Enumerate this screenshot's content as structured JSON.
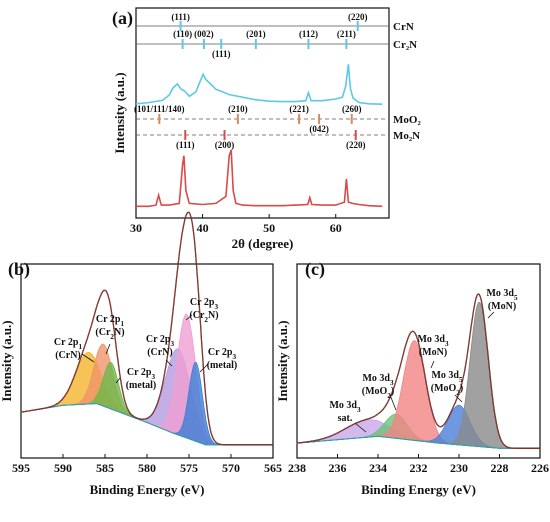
{
  "chart_data": [
    {
      "panel": "(a)",
      "type": "line",
      "xlabel": "2θ (degree)",
      "ylabel": "Intensity (a.u.)",
      "xlim": [
        30,
        68
      ],
      "xticks": [
        "30",
        "40",
        "50",
        "60"
      ],
      "reference_rows": [
        {
          "name": "CrN",
          "peaks": [
            {
              "x": 36.7,
              "label": "(111)"
            },
            {
              "x": 63.3,
              "label": "(220)"
            }
          ]
        },
        {
          "name": "Cr₂N",
          "peaks": [
            {
              "x": 37.0,
              "label": "(110)"
            },
            {
              "x": 40.2,
              "label": "(002)"
            },
            {
              "x": 42.8,
              "label": "(111)"
            },
            {
              "x": 48.0,
              "label": "(201)"
            },
            {
              "x": 55.9,
              "label": "(112)"
            },
            {
              "x": 61.6,
              "label": "(211)"
            }
          ]
        },
        {
          "name": "MoO₂",
          "peaks": [
            {
              "x": 33.5,
              "label": "(101/111/140)"
            },
            {
              "x": 45.3,
              "label": "(210)"
            },
            {
              "x": 54.5,
              "label": "(221)"
            },
            {
              "x": 57.5,
              "label": "(042)"
            },
            {
              "x": 62.4,
              "label": "(260)"
            }
          ]
        },
        {
          "name": "Mo₂N",
          "peaks": [
            {
              "x": 37.4,
              "label": "(111)"
            },
            {
              "x": 43.3,
              "label": "(200)"
            },
            {
              "x": 63.0,
              "label": "(220)"
            }
          ]
        }
      ],
      "series": [
        {
          "color": "#5cc9e6",
          "x": [
            30,
            32,
            34,
            35,
            35.5,
            36.2,
            36.8,
            37.3,
            38,
            39,
            39.6,
            40.1,
            40.5,
            41.2,
            42,
            43,
            44,
            46,
            48,
            50,
            52,
            54,
            55.5,
            55.9,
            56.3,
            58,
            60,
            61,
            61.5,
            61.9,
            62.2,
            62.6,
            63.5,
            65,
            67
          ],
          "y": [
            0.05,
            0.08,
            0.13,
            0.25,
            0.4,
            0.5,
            0.38,
            0.34,
            0.22,
            0.32,
            0.55,
            0.72,
            0.6,
            0.5,
            0.38,
            0.32,
            0.26,
            0.2,
            0.14,
            0.11,
            0.1,
            0.1,
            0.12,
            0.3,
            0.12,
            0.12,
            0.16,
            0.2,
            0.45,
            0.95,
            0.4,
            0.18,
            0.08,
            0.05,
            0.04
          ]
        },
        {
          "color": "#d94a4a",
          "x": [
            30,
            32,
            33,
            33.4,
            33.8,
            35,
            36.5,
            37.0,
            37.2,
            37.5,
            38,
            40,
            42,
            43.5,
            44.0,
            44.3,
            44.6,
            45,
            46,
            48,
            50,
            52,
            54,
            55.8,
            56.1,
            56.4,
            58,
            60,
            61.3,
            61.6,
            61.9,
            62.5,
            63.5,
            65,
            67
          ],
          "y": [
            0.03,
            0.03,
            0.05,
            0.22,
            0.05,
            0.05,
            0.08,
            0.75,
            0.9,
            0.3,
            0.08,
            0.06,
            0.08,
            0.2,
            0.9,
            1.0,
            0.3,
            0.08,
            0.05,
            0.04,
            0.04,
            0.04,
            0.05,
            0.06,
            0.18,
            0.06,
            0.05,
            0.05,
            0.1,
            0.5,
            0.1,
            0.08,
            0.06,
            0.04,
            0.03
          ]
        }
      ]
    },
    {
      "panel": "(b)",
      "type": "area",
      "xlabel": "Binding Energy (eV)",
      "ylabel": "Intensity (a.u.)",
      "xlim": [
        595,
        565
      ],
      "xticks": [
        "595",
        "590",
        "585",
        "580",
        "575",
        "570",
        "565"
      ],
      "annotations": [
        {
          "l1": "Cr 2p",
          "s1": "1",
          "l2": "(CrN)",
          "x": 587.8
        },
        {
          "l1": "Cr 2p",
          "s1": "1",
          "l2": "(Cr",
          "s2": "2",
          "l3": "N)",
          "x": 584.7
        },
        {
          "l1": "Cr 2p",
          "s1": "3",
          "l2": "(metal)",
          "x": 582.2
        },
        {
          "l1": "Cr 2p",
          "s1": "3",
          "l2": "(CrN)",
          "x": 576.8
        },
        {
          "l1": "Cr 2p",
          "s1": "3",
          "l2": "(Cr",
          "s2": "2",
          "l3": "N)",
          "x": 574.6
        },
        {
          "l1": "Cr 2p",
          "s1": "3",
          "l2": "(metal)",
          "x": 572.5
        }
      ],
      "peaks": [
        {
          "center": 587.0,
          "height": 0.3,
          "width": 1.5,
          "color": "#f2b42c"
        },
        {
          "center": 585.2,
          "height": 0.36,
          "width": 1.1,
          "color": "#f0956a"
        },
        {
          "center": 584.3,
          "height": 0.27,
          "width": 0.9,
          "color": "#6db84a"
        },
        {
          "center": 576.3,
          "height": 0.5,
          "width": 1.5,
          "color": "#b59ae0"
        },
        {
          "center": 575.3,
          "height": 0.72,
          "width": 1.1,
          "color": "#ef9fd3"
        },
        {
          "center": 574.2,
          "height": 0.46,
          "width": 0.8,
          "color": "#3d7fd6"
        }
      ],
      "baseline": [
        {
          "x": 595,
          "y": 0.22
        },
        {
          "x": 590,
          "y": 0.26
        },
        {
          "x": 586,
          "y": 0.27
        },
        {
          "x": 580,
          "y": 0.16
        },
        {
          "x": 577,
          "y": 0.1
        },
        {
          "x": 573,
          "y": 0.03
        },
        {
          "x": 565,
          "y": 0.03
        }
      ]
    },
    {
      "panel": "(c)",
      "type": "area",
      "xlabel": "Binding Energy (eV)",
      "ylabel": "Intensity (a.u.)",
      "xlim": [
        238,
        226
      ],
      "xticks": [
        "238",
        "236",
        "234",
        "232",
        "230",
        "228",
        "226"
      ],
      "annotations": [
        {
          "l1": "Mo 3d",
          "s1": "3",
          "l2": "sat.",
          "x": 235.0
        },
        {
          "l1": "Mo 3d",
          "s1": "3",
          "l2": "(MoO",
          "s2": "2",
          "l3": ")",
          "x": 233.6
        },
        {
          "l1": "Mo 3d",
          "s1": "3",
          "l2": "(MoN)",
          "x": 232.2
        },
        {
          "l1": "Mo 3d",
          "s1": "5",
          "l2": "(MoO",
          "s2": "2",
          "l3": ")",
          "x": 229.9
        },
        {
          "l1": "Mo 3d",
          "s1": "5",
          "l2": "(MoN)",
          "x": 228.9
        }
      ],
      "peaks": [
        {
          "center": 234.5,
          "height": 0.1,
          "width": 1.1,
          "color": "#c9a7ea"
        },
        {
          "center": 233.1,
          "height": 0.14,
          "width": 0.55,
          "color": "#6cc27a"
        },
        {
          "center": 232.2,
          "height": 0.58,
          "width": 0.55,
          "color": "#f28484"
        },
        {
          "center": 230.0,
          "height": 0.23,
          "width": 0.55,
          "color": "#4a7fd9"
        },
        {
          "center": 229.0,
          "height": 0.84,
          "width": 0.45,
          "color": "#8a8a8a"
        }
      ],
      "baseline": [
        {
          "x": 238,
          "y": 0.04
        },
        {
          "x": 234,
          "y": 0.08
        },
        {
          "x": 231,
          "y": 0.04
        },
        {
          "x": 228,
          "y": 0.01
        },
        {
          "x": 226,
          "y": 0.01
        }
      ]
    }
  ]
}
